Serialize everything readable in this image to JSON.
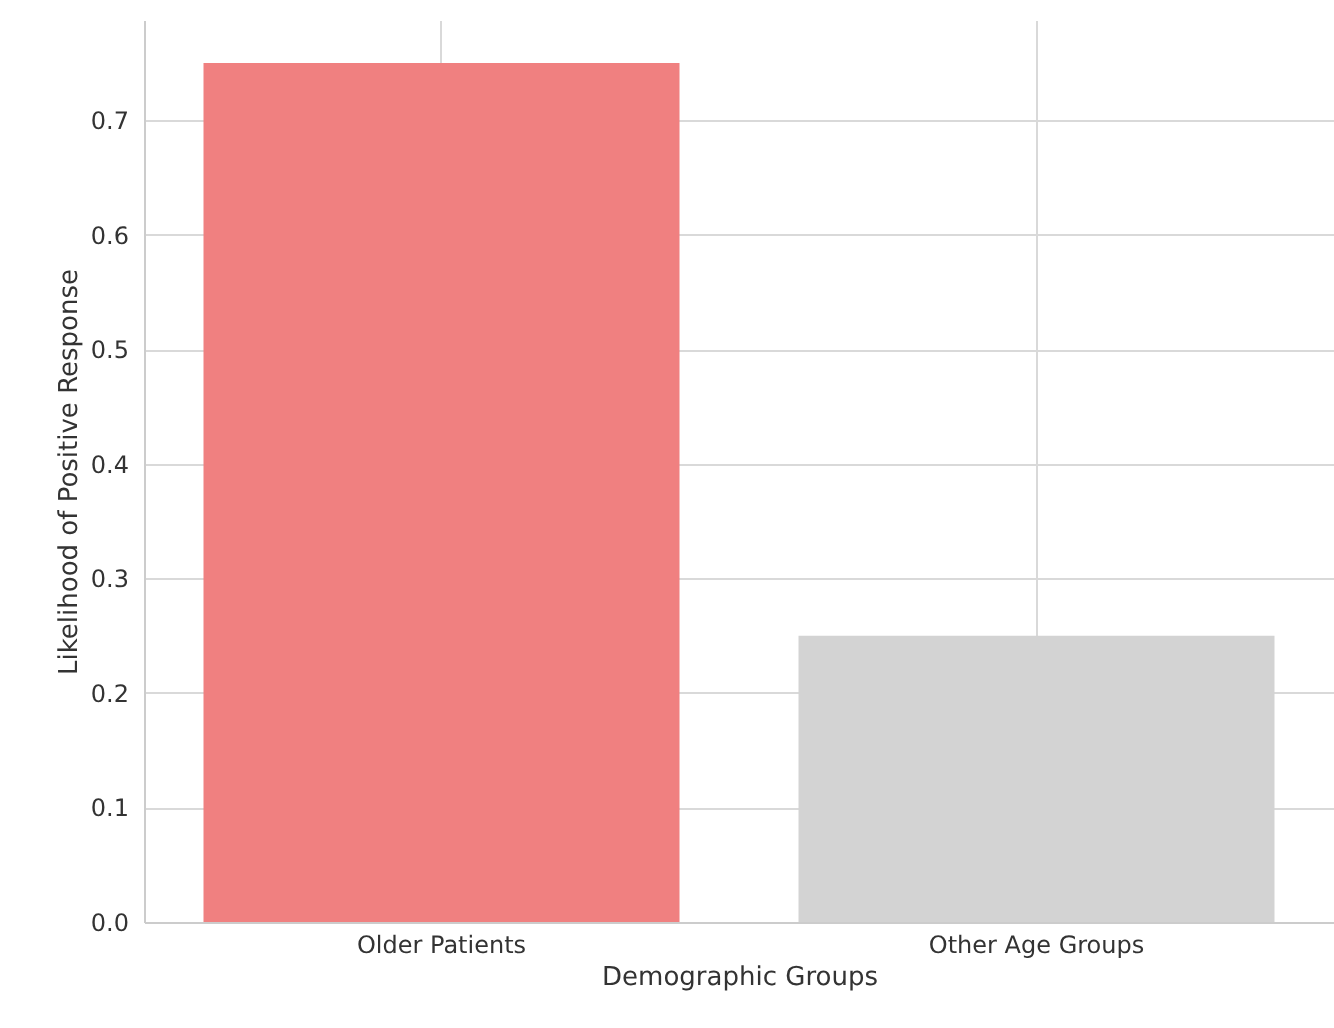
{
  "chart_data": {
    "type": "bar",
    "xlabel": "Demographic Groups",
    "ylabel": "Likelihood of Positive Response",
    "categories": [
      "Older Patients",
      "Other Age Groups"
    ],
    "values": [
      0.75,
      0.25
    ],
    "colors": [
      "#f08080",
      "#d3d3d3"
    ],
    "ylim": [
      0,
      0.7875
    ],
    "yticks": [
      {
        "value": 0,
        "label": "0.0"
      },
      0.1,
      0.2,
      0.3,
      0.4,
      0.5,
      0.6,
      0.7
    ],
    "grid": true
  }
}
